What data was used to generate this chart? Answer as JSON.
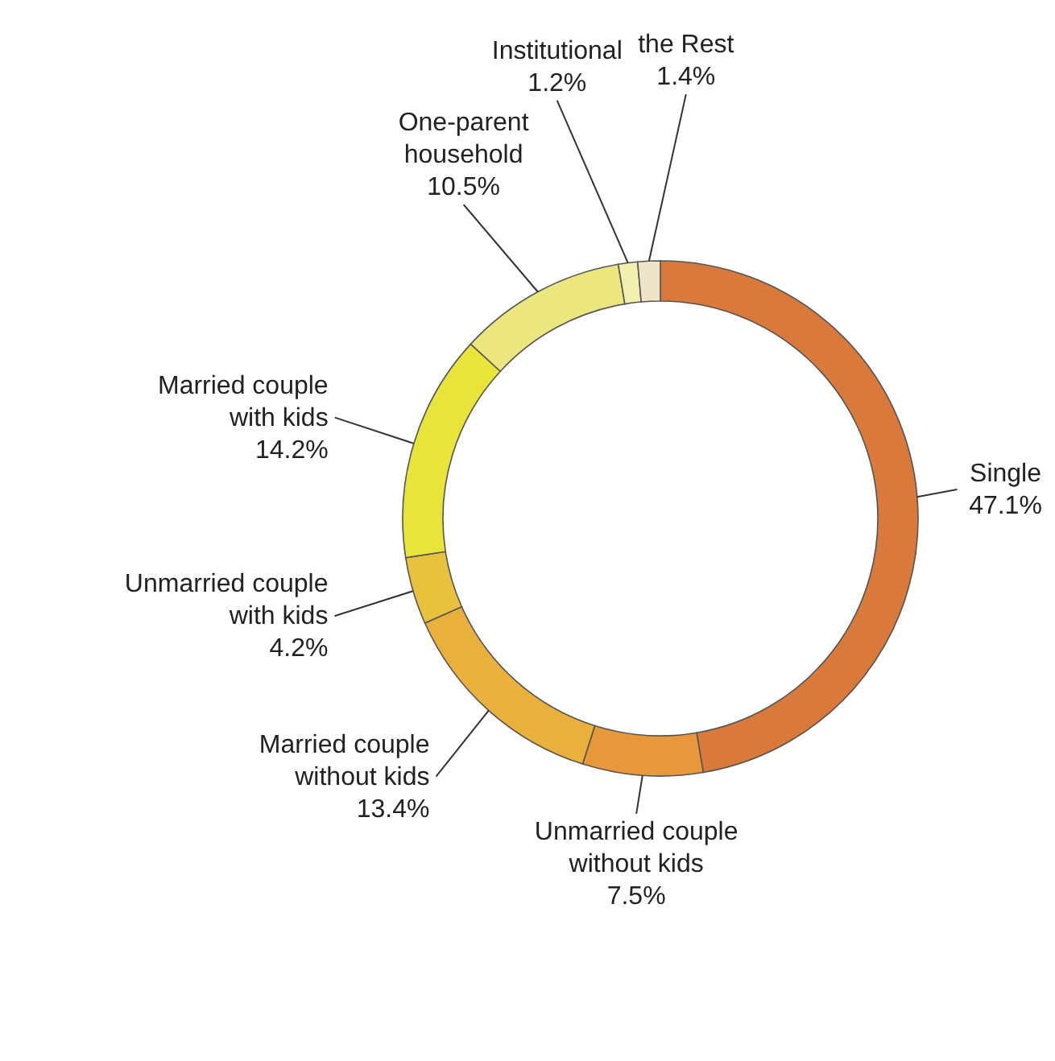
{
  "chart_data": {
    "type": "donut",
    "categories": [
      "Single",
      "Unmarried couple without kids",
      "Married couple without kids",
      "Unmarried couple with kids",
      "Married couple with kids",
      "One-parent household",
      "Institutional",
      "the Rest"
    ],
    "values": [
      47.1,
      7.5,
      13.4,
      4.2,
      14.2,
      10.5,
      1.2,
      1.4
    ],
    "value_labels": [
      "47.1%",
      "7.5%",
      "13.4%",
      "4.2%",
      "14.2%",
      "10.5%",
      "1.2%",
      "1.4%"
    ],
    "colors": [
      "#d9793b",
      "#e8973a",
      "#e9b03c",
      "#e8c23c",
      "#e8e43a",
      "#ebe67e",
      "#f3efb0",
      "#efe3c8"
    ]
  }
}
